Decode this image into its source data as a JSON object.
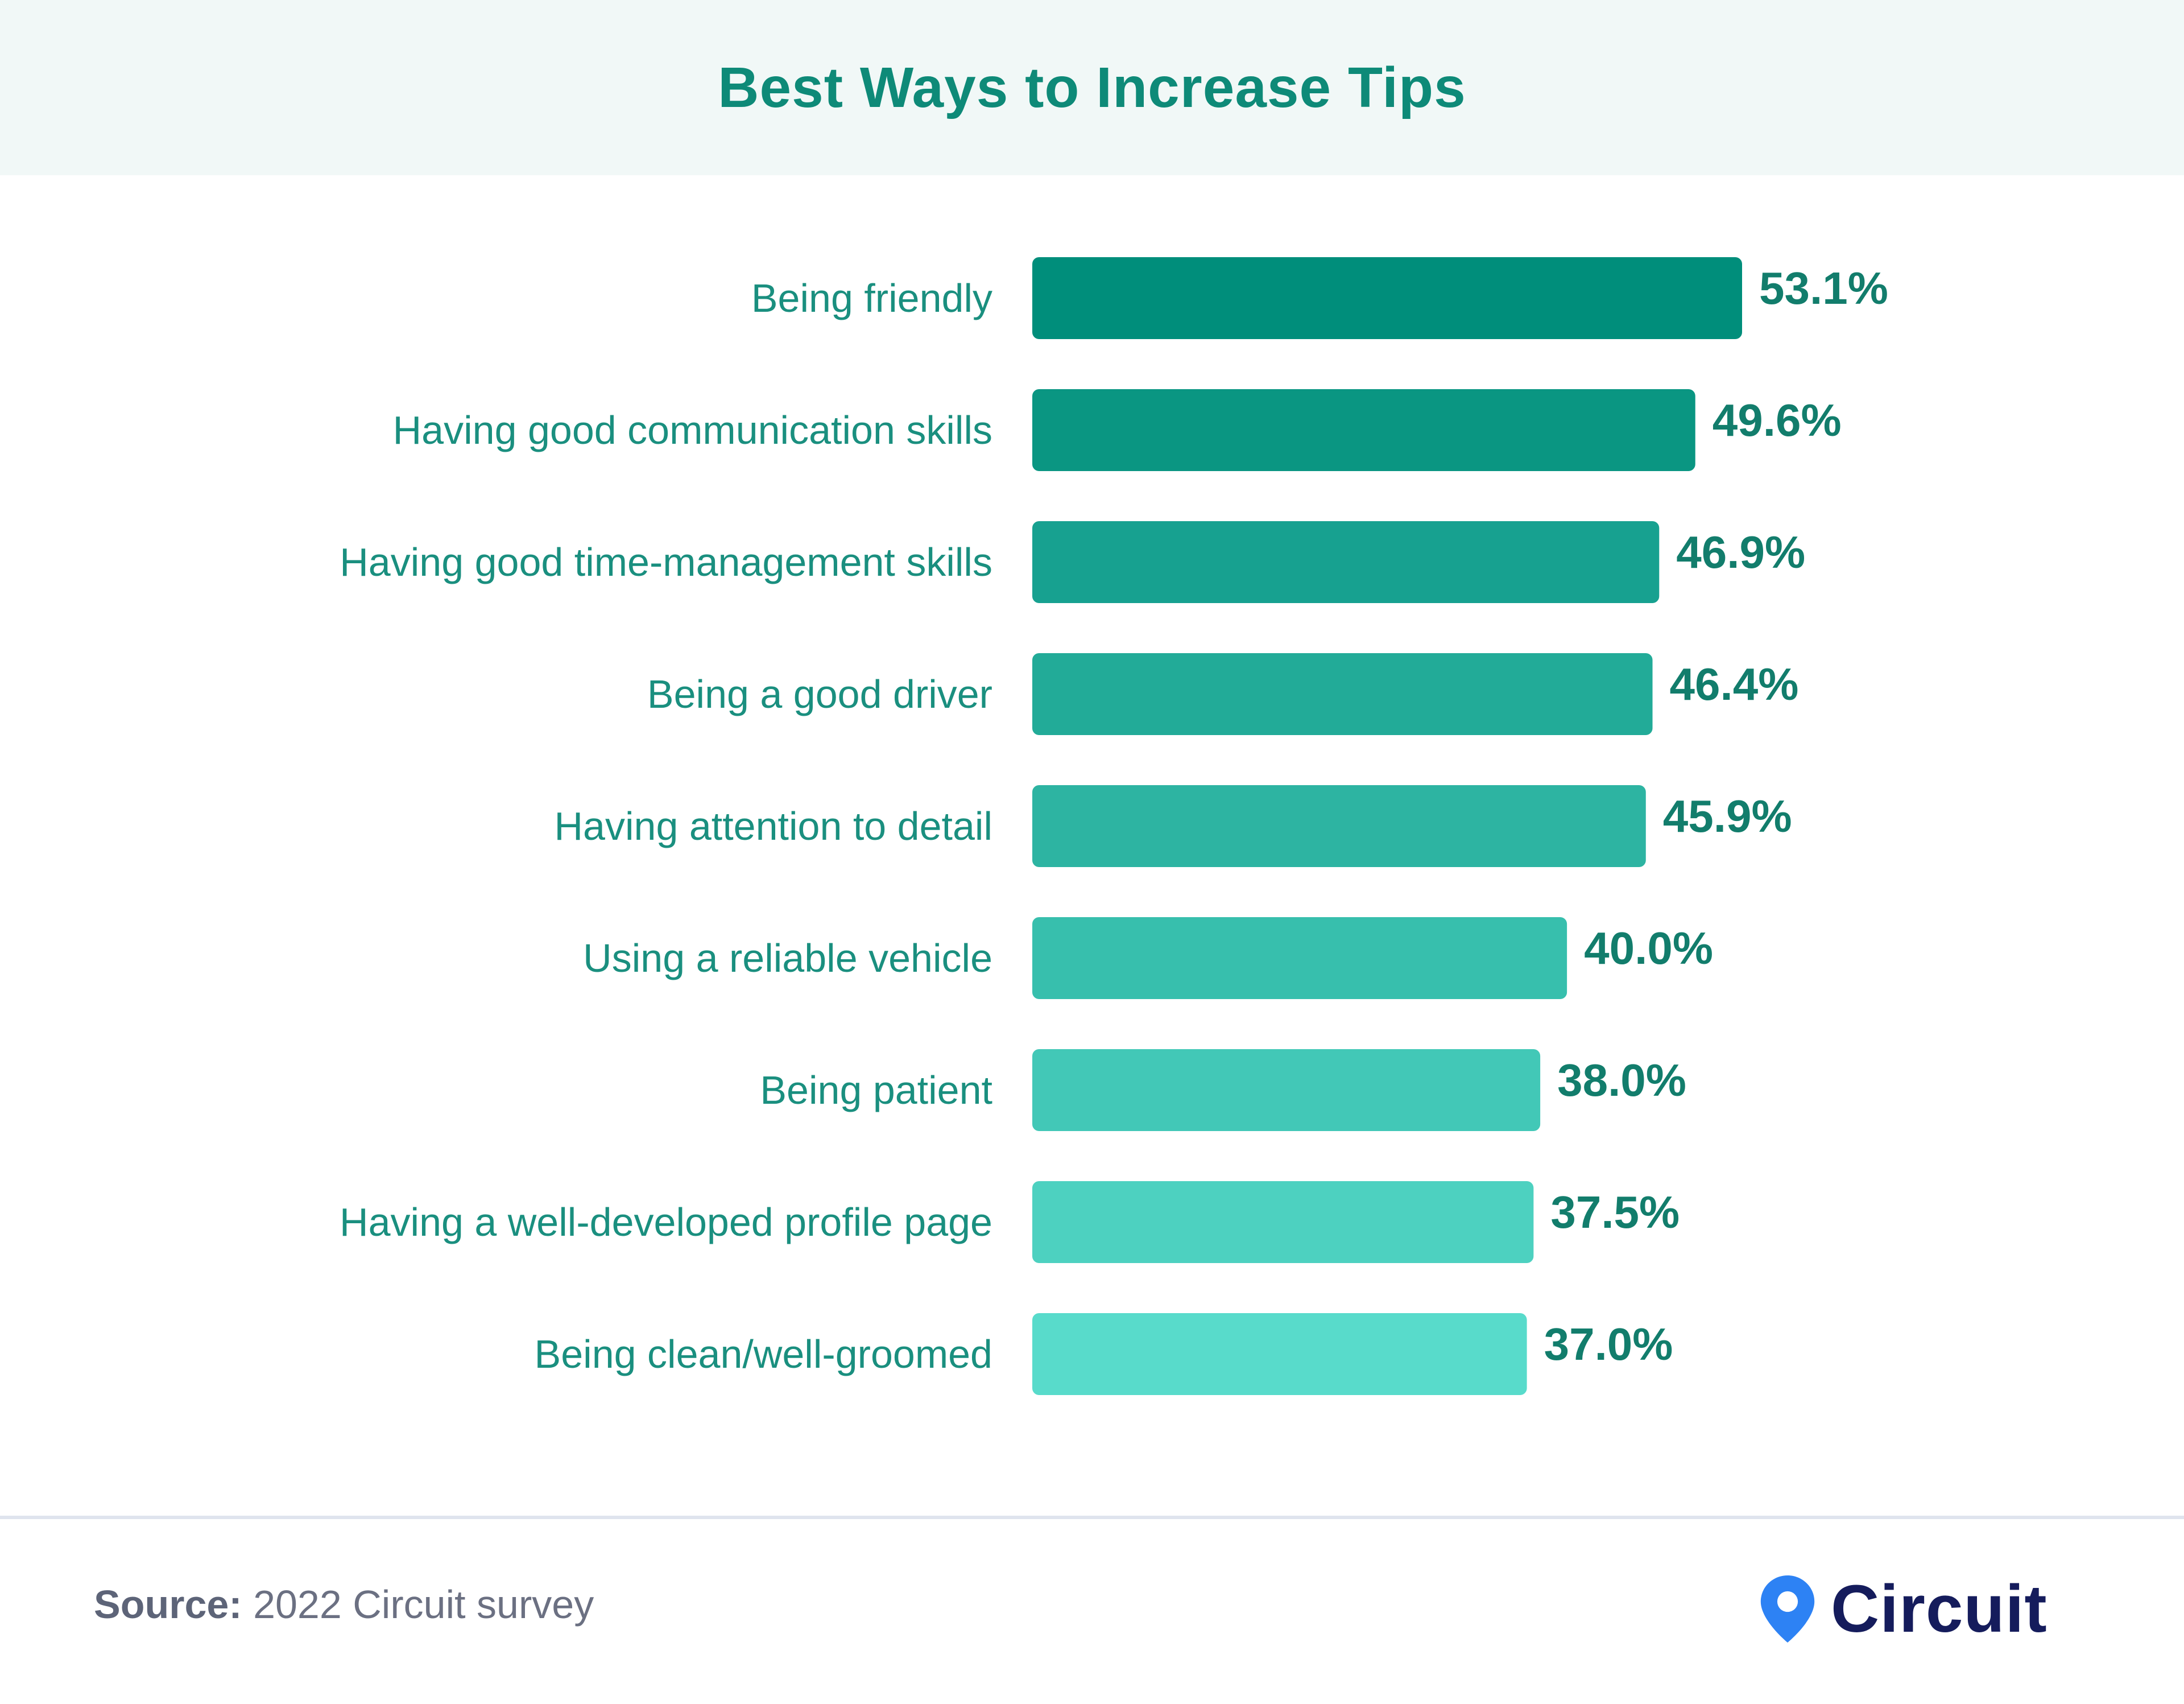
{
  "header": {
    "title": "Best Ways to Increase Tips"
  },
  "colors": {
    "title": "#0e8a78",
    "label": "#1a8f7f",
    "value": "#127d6c",
    "header_bg": "#f1f8f7",
    "bar_colors": [
      "#008e7b",
      "#0a9682",
      "#17a190",
      "#22ab98",
      "#2db4a2",
      "#37bfad",
      "#42c8b7",
      "#4dd1c0",
      "#58dbcb"
    ],
    "logo_pin": "#2d82f4",
    "logo_text": "#151c5c"
  },
  "chart_data": {
    "type": "bar",
    "orientation": "horizontal",
    "title": "Best Ways to Increase Tips",
    "categories": [
      "Being friendly",
      "Having good communication skills",
      "Having good time-management skills",
      "Being a good driver",
      "Having attention to detail",
      "Using a reliable vehicle",
      "Being patient",
      "Having a well-developed profile page",
      "Being clean/well-groomed"
    ],
    "values": [
      53.1,
      49.6,
      46.9,
      46.4,
      45.9,
      40.0,
      38.0,
      37.5,
      37.0
    ],
    "value_labels": [
      "53.1%",
      "49.6%",
      "46.9%",
      "46.4%",
      "45.9%",
      "40.0%",
      "38.0%",
      "37.5%",
      "37.0%"
    ],
    "xlabel": "",
    "ylabel": "",
    "xlim": [
      0,
      53.1
    ],
    "grid": false
  },
  "footer": {
    "source_label": "Source:",
    "source_text": " 2022 Circuit survey",
    "logo_text": "Circuit",
    "logo_icon": "map-pin-icon"
  }
}
